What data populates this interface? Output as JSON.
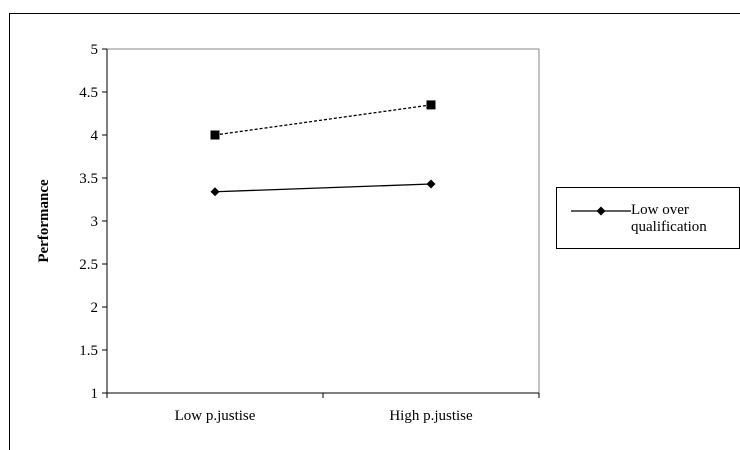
{
  "chart_data": {
    "type": "line",
    "title": "",
    "xlabel": "",
    "ylabel": "Performance",
    "categories": [
      "Low p.justise",
      "High p.justise"
    ],
    "ylim": [
      1,
      5
    ],
    "yticks": [
      "1",
      "1.5",
      "2",
      "2.5",
      "3",
      "3.5",
      "4",
      "4.5",
      "5"
    ],
    "grid": false,
    "legend_position": "right",
    "series": [
      {
        "name": "Low over qualification",
        "values": [
          3.34,
          3.43
        ],
        "line_style": "solid",
        "marker": "diamond",
        "color": "#000000"
      },
      {
        "values": [
          4.0,
          4.35
        ],
        "line_style": "dashed",
        "marker": "square",
        "color": "#000000"
      }
    ]
  },
  "legend": {
    "entry_line1": "Low over",
    "entry_line2": "qualification"
  }
}
